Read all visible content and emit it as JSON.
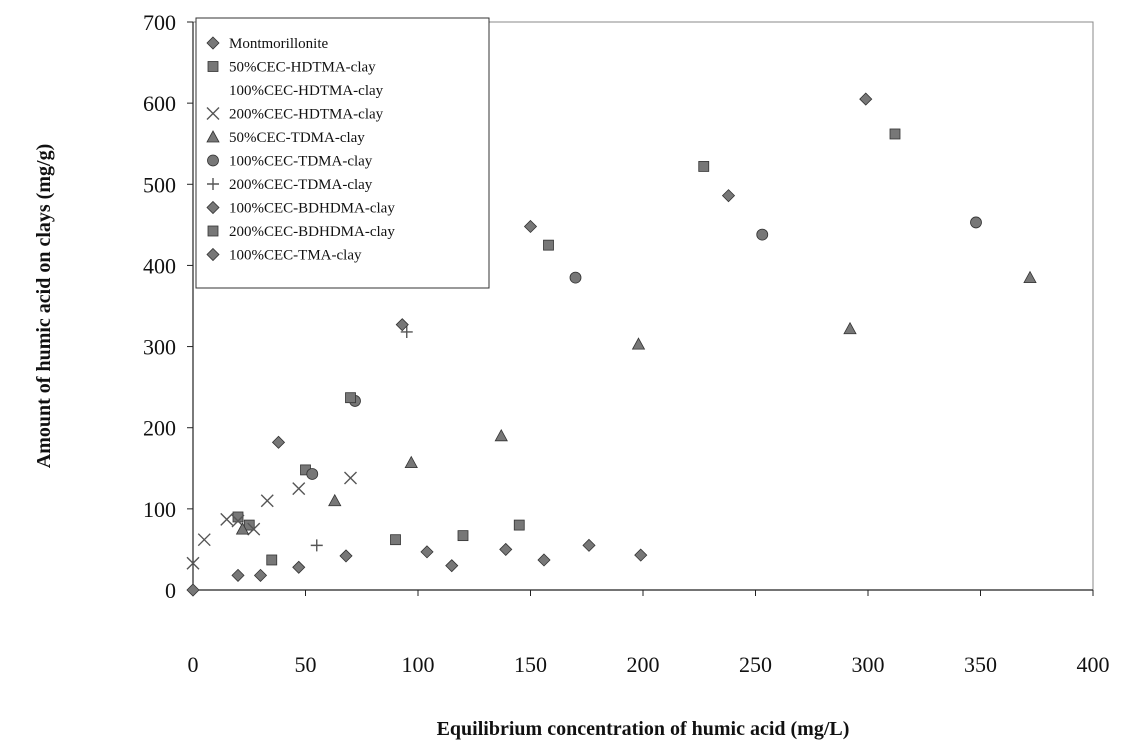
{
  "chart_data": {
    "type": "scatter",
    "xlabel": "Equilibrium concentration of humic acid (mg/L)",
    "ylabel": "Amount of humic acid on clays (mg/g)",
    "xlim": [
      0,
      400
    ],
    "ylim": [
      0,
      700
    ],
    "xticks": [
      "0",
      "50",
      "100",
      "150",
      "200",
      "250",
      "300",
      "350",
      "400"
    ],
    "yticks": [
      "0",
      "100",
      "200",
      "300",
      "400",
      "500",
      "600",
      "700"
    ],
    "legend_position": "top-left",
    "grid": false,
    "series": [
      {
        "name": "Montmorillonite",
        "marker": "diamond",
        "color": "#777777",
        "x": [
          0,
          20,
          30,
          47,
          68,
          104,
          115,
          139,
          156,
          176,
          199
        ],
        "y": [
          0,
          18,
          18,
          28,
          42,
          47,
          30,
          50,
          37,
          55,
          43
        ]
      },
      {
        "name": "50%CEC-HDTMA-clay",
        "marker": "square",
        "color": "#777777",
        "x": [
          20,
          25,
          50,
          90,
          120,
          145,
          227,
          312
        ],
        "y": [
          90,
          80,
          148,
          62,
          67,
          80,
          522,
          562
        ]
      },
      {
        "name": "100%CEC-HDTMA-clay",
        "marker": "none",
        "color": "#777777",
        "x": [],
        "y": []
      },
      {
        "name": "200%CEC-HDTMA-clay",
        "marker": "x",
        "color": "#777777",
        "x": [
          0,
          5,
          15,
          20,
          27,
          33,
          47,
          70
        ],
        "y": [
          33,
          62,
          87,
          85,
          75,
          110,
          125,
          138
        ]
      },
      {
        "name": "50%CEC-TDMA-clay",
        "marker": "triangle",
        "color": "#777777",
        "x": [
          22,
          63,
          97,
          137,
          198,
          292,
          372
        ],
        "y": [
          75,
          110,
          157,
          190,
          303,
          322,
          385
        ]
      },
      {
        "name": "100%CEC-TDMA-clay",
        "marker": "circle",
        "color": "#777777",
        "x": [
          53,
          72,
          170,
          253,
          348
        ],
        "y": [
          143,
          233,
          385,
          438,
          453
        ]
      },
      {
        "name": "200%CEC-TDMA-clay",
        "marker": "plus",
        "color": "#777777",
        "x": [
          55,
          95
        ],
        "y": [
          55,
          318
        ]
      },
      {
        "name": "100%CEC-BDHDMA-clay",
        "marker": "diamond",
        "color": "#777777",
        "x": [
          38,
          93,
          150,
          238,
          299
        ],
        "y": [
          182,
          327,
          448,
          486,
          605
        ]
      },
      {
        "name": "200%CEC-BDHDMA-clay",
        "marker": "square",
        "color": "#777777",
        "x": [
          35,
          70,
          158
        ],
        "y": [
          37,
          237,
          425
        ]
      },
      {
        "name": "100%CEC-TMA-clay",
        "marker": "diamond",
        "color": "#777777",
        "x": [],
        "y": []
      }
    ]
  }
}
